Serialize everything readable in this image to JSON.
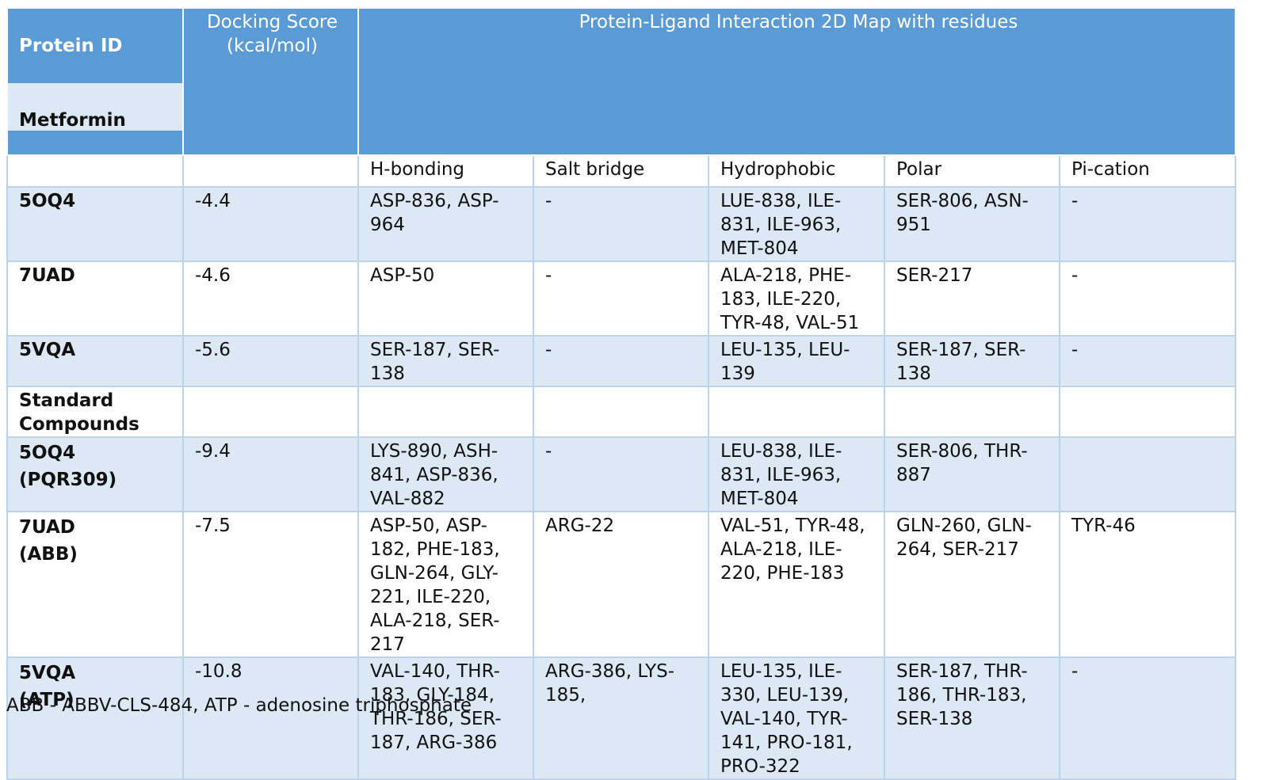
{
  "header": {
    "protein_id": "Protein ID",
    "metformin": "Metformin",
    "docking_score": "Docking Score\n(kcal/mol)",
    "interaction_map": "Protein-Ligand Interaction 2D Map with residues"
  },
  "subheaders": [
    "H-bonding",
    "Salt bridge",
    "Hydrophobic",
    "Polar",
    "Pi-cation"
  ],
  "rows": [
    {
      "id": "5OQ4",
      "score": "-4.4",
      "hbond": "ASP-836, ASP-\n964",
      "salt": "-",
      "hydro": "LUE-838, ILE-\n831, ILE-963,\nMET-804",
      "polar": "SER-806, ASN-\n951",
      "pi": "-"
    },
    {
      "id": "7UAD",
      "score": "-4.6",
      "hbond": "ASP-50",
      "salt": "-",
      "hydro": "ALA-218, PHE-\n183, ILE-220,\nTYR-48, VAL-51",
      "polar": "SER-217",
      "pi": "-"
    },
    {
      "id": "5VQA",
      "score": "-5.6",
      "hbond": "SER-187, SER-\n138",
      "salt": "-",
      "hydro": "LEU-135, LEU-\n139",
      "polar": "SER-187, SER-\n138",
      "pi": "-"
    },
    {
      "id": "Standard\nCompounds",
      "score": "",
      "hbond": "",
      "salt": "",
      "hydro": "",
      "polar": "",
      "pi": ""
    },
    {
      "id": "5OQ4\n(PQR309)",
      "score": "-9.4",
      "hbond": "LYS-890, ASH-\n841, ASP-836,\nVAL-882",
      "salt": "-",
      "hydro": "LEU-838, ILE-\n831, ILE-963,\nMET-804",
      "polar": "SER-806, THR-\n887",
      "pi": ""
    },
    {
      "id": "7UAD\n(ABB)",
      "score": "-7.5",
      "hbond": "ASP-50, ASP-\n182, PHE-183,\nGLN-264, GLY-\n221, ILE-220,\nALA-218, SER-\n217",
      "salt": "ARG-22",
      "hydro": "VAL-51, TYR-48,\nALA-218, ILE-\n220, PHE-183",
      "polar": "GLN-260, GLN-\n264, SER-217",
      "pi": "TYR-46"
    },
    {
      "id": "5VQA\n(ATP)",
      "score": "-10.8",
      "hbond": "VAL-140, THR-\n183, GLY-184,\nTHR-186, SER-\n187, ARG-386",
      "salt": "ARG-386, LYS-\n185,",
      "hydro": "LEU-135, ILE-\n330, LEU-139,\nVAL-140, TYR-\n141, PRO-181,\nPRO-322",
      "polar": "SER-187, THR-\n186, THR-183,\nSER-138",
      "pi": "-"
    }
  ],
  "footnote": "ABB - ABBV-CLS-484, ATP - adenosine triphosphate",
  "colors": {
    "header_bg": "#5b9bd5",
    "row_tint": "#dde8f5",
    "border": "#bdd3ec"
  }
}
